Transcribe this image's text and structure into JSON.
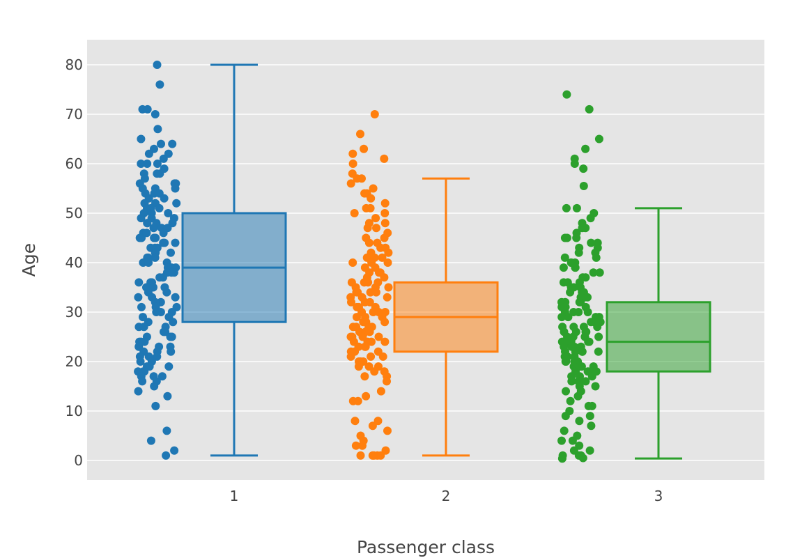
{
  "chart_data": {
    "type": "box",
    "title": "",
    "xlabel": "Passenger class",
    "ylabel": "Age",
    "ylim": [
      -4,
      85
    ],
    "yticks": [
      0,
      10,
      20,
      30,
      40,
      50,
      60,
      70,
      80
    ],
    "grid": true,
    "background": "#e5e5e5",
    "categories": [
      "1",
      "2",
      "3"
    ],
    "series": [
      {
        "category": "1",
        "color": "#1f77b4",
        "box": {
          "min": 1,
          "q1": 28,
          "median": 39,
          "q3": 50,
          "max": 80
        },
        "points": [
          80,
          76,
          71,
          71,
          70,
          67,
          65,
          64,
          64,
          63,
          62,
          62,
          61,
          60,
          60,
          60,
          59,
          58,
          58,
          58,
          57,
          56,
          56,
          56,
          55,
          55,
          55,
          54,
          54,
          54,
          53,
          53,
          52,
          52,
          52,
          51,
          51,
          51,
          50,
          50,
          50,
          49,
          49,
          49,
          48,
          48,
          48,
          48,
          47,
          47,
          47,
          46,
          46,
          46,
          45,
          45,
          45,
          45,
          44,
          44,
          44,
          43,
          43,
          43,
          42,
          42,
          42,
          41,
          41,
          41,
          40,
          40,
          40,
          39,
          39,
          39,
          38,
          38,
          38,
          37,
          37,
          36,
          36,
          36,
          35,
          35,
          35,
          34,
          34,
          33,
          33,
          33,
          32,
          32,
          31,
          31,
          31,
          30,
          30,
          30,
          29,
          29,
          28,
          28,
          27,
          27,
          27,
          26,
          26,
          25,
          25,
          25,
          24,
          24,
          24,
          23,
          23,
          23,
          22,
          22,
          22,
          21,
          21,
          21,
          20,
          20,
          19,
          19,
          19,
          18,
          18,
          18,
          17,
          17,
          17,
          16,
          16,
          15,
          14,
          13,
          11,
          6,
          4,
          2,
          1
        ]
      },
      {
        "category": "2",
        "color": "#ff7f0e",
        "box": {
          "min": 1,
          "q1": 22,
          "median": 29,
          "q3": 36,
          "max": 57
        },
        "points": [
          70,
          66,
          63,
          62,
          61,
          60,
          58,
          57,
          57,
          56,
          55,
          54,
          54,
          53,
          52,
          51,
          51,
          50,
          50,
          49,
          48,
          48,
          47,
          47,
          46,
          45,
          45,
          44,
          44,
          43,
          43,
          42,
          42,
          41,
          41,
          41,
          40,
          40,
          40,
          39,
          39,
          38,
          38,
          38,
          37,
          37,
          36,
          36,
          36,
          36,
          35,
          35,
          35,
          34,
          34,
          34,
          34,
          33,
          33,
          33,
          32,
          32,
          32,
          31,
          31,
          31,
          30,
          30,
          30,
          30,
          29,
          29,
          29,
          28,
          28,
          28,
          27,
          27,
          27,
          27,
          26,
          26,
          26,
          25,
          25,
          25,
          25,
          24,
          24,
          24,
          24,
          23,
          23,
          23,
          22,
          22,
          22,
          21,
          21,
          21,
          20,
          20,
          20,
          19,
          19,
          19,
          18,
          18,
          17,
          17,
          16,
          14,
          13,
          12,
          12,
          8,
          8,
          7,
          6,
          5,
          4,
          3,
          3,
          2,
          1,
          1,
          1,
          1,
          1
        ]
      },
      {
        "category": "3",
        "color": "#2ca02c",
        "box": {
          "min": 0.4,
          "q1": 18,
          "median": 24,
          "q3": 32,
          "max": 51
        },
        "points": [
          74,
          71,
          65,
          63,
          61,
          60,
          59,
          55.5,
          51,
          51,
          50,
          49,
          48,
          47,
          47,
          46,
          45,
          45,
          45,
          44,
          44,
          43,
          43,
          42,
          42,
          41,
          41,
          40,
          40,
          40,
          39,
          39,
          39,
          38,
          38,
          37,
          37,
          36,
          36,
          36,
          35,
          35,
          35,
          34,
          34,
          34,
          33,
          33,
          33,
          32,
          32,
          32,
          32,
          31,
          31,
          31,
          30,
          30,
          30,
          30,
          29,
          29,
          29,
          29,
          28,
          28,
          28,
          28,
          27,
          27,
          27,
          27,
          26,
          26,
          26,
          26,
          25,
          25,
          25,
          25,
          24,
          24,
          24,
          24,
          24,
          23,
          23,
          23,
          23,
          22,
          22,
          22,
          22,
          22,
          21,
          21,
          21,
          21,
          20,
          20,
          20,
          20,
          19,
          19,
          19,
          19,
          18,
          18,
          18,
          18,
          17,
          17,
          17,
          16,
          16,
          16,
          15,
          15,
          14,
          14,
          13,
          12,
          11,
          11,
          10,
          9,
          9,
          8,
          7,
          6,
          5,
          4,
          4,
          3,
          2,
          2,
          1,
          1,
          1,
          0.5,
          0.4
        ]
      }
    ]
  }
}
